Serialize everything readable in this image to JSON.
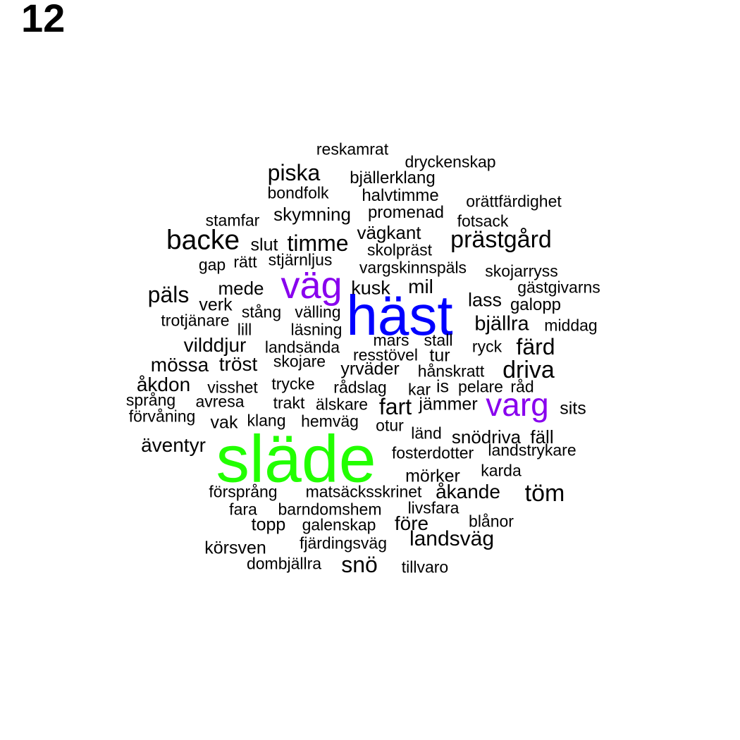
{
  "panel_label": "12",
  "colors": {
    "default": "#000000",
    "green": "#22ff00",
    "blue": "#0000ff",
    "purple": "#8800ee"
  },
  "words": [
    {
      "text": "släde",
      "weight": 9.5,
      "color": "#22ff00"
    },
    {
      "text": "häst",
      "weight": 8.0,
      "color": "#0000ff"
    },
    {
      "text": "väg",
      "weight": 5.4,
      "color": "#8800ee"
    },
    {
      "text": "varg",
      "weight": 4.6,
      "color": "#8800ee"
    },
    {
      "text": "backe",
      "weight": 3.9,
      "color": "#000000"
    },
    {
      "text": "prästgård",
      "weight": 3.4,
      "color": "#000000"
    },
    {
      "text": "driva",
      "weight": 3.4,
      "color": "#000000"
    },
    {
      "text": "töm",
      "weight": 3.4,
      "color": "#000000"
    },
    {
      "text": "piska",
      "weight": 3.2,
      "color": "#000000"
    },
    {
      "text": "timme",
      "weight": 3.2,
      "color": "#000000"
    },
    {
      "text": "päls",
      "weight": 3.2,
      "color": "#000000"
    },
    {
      "text": "färd",
      "weight": 3.2,
      "color": "#000000"
    },
    {
      "text": "fart",
      "weight": 3.2,
      "color": "#000000"
    },
    {
      "text": "snö",
      "weight": 3.2,
      "color": "#000000"
    },
    {
      "text": "landsväg",
      "weight": 3.0,
      "color": "#000000"
    },
    {
      "text": "bjällra",
      "weight": 2.9,
      "color": "#000000"
    },
    {
      "text": "vilddjur",
      "weight": 2.8,
      "color": "#000000"
    },
    {
      "text": "mössa",
      "weight": 2.8,
      "color": "#000000"
    },
    {
      "text": "tröst",
      "weight": 2.8,
      "color": "#000000"
    },
    {
      "text": "åkdon",
      "weight": 2.8,
      "color": "#000000"
    },
    {
      "text": "äventyr",
      "weight": 2.8,
      "color": "#000000"
    },
    {
      "text": "åkande",
      "weight": 2.8,
      "color": "#000000"
    },
    {
      "text": "före",
      "weight": 2.8,
      "color": "#000000"
    },
    {
      "text": "mil",
      "weight": 2.8,
      "color": "#000000"
    },
    {
      "text": "kusk",
      "weight": 2.7,
      "color": "#000000"
    },
    {
      "text": "lass",
      "weight": 2.7,
      "color": "#000000"
    },
    {
      "text": "vägkant",
      "weight": 2.6,
      "color": "#000000"
    },
    {
      "text": "skymning",
      "weight": 2.6,
      "color": "#000000"
    },
    {
      "text": "mede",
      "weight": 2.6,
      "color": "#000000"
    },
    {
      "text": "snödriva",
      "weight": 2.6,
      "color": "#000000"
    },
    {
      "text": "fäll",
      "weight": 2.6,
      "color": "#000000"
    },
    {
      "text": "slut",
      "weight": 2.5,
      "color": "#000000"
    },
    {
      "text": "verk",
      "weight": 2.5,
      "color": "#000000"
    },
    {
      "text": "tur",
      "weight": 2.5,
      "color": "#000000"
    },
    {
      "text": "yrväder",
      "weight": 2.5,
      "color": "#000000"
    },
    {
      "text": "jämmer",
      "weight": 2.5,
      "color": "#000000"
    },
    {
      "text": "sits",
      "weight": 2.5,
      "color": "#000000"
    },
    {
      "text": "mörker",
      "weight": 2.5,
      "color": "#000000"
    },
    {
      "text": "topp",
      "weight": 2.5,
      "color": "#000000"
    },
    {
      "text": "körsven",
      "weight": 2.5,
      "color": "#000000"
    },
    {
      "text": "vak",
      "weight": 2.5,
      "color": "#000000"
    },
    {
      "text": "is",
      "weight": 2.5,
      "color": "#000000"
    },
    {
      "text": "galopp",
      "weight": 2.4,
      "color": "#000000"
    },
    {
      "text": "halvtimme",
      "weight": 2.4,
      "color": "#000000"
    },
    {
      "text": "promenad",
      "weight": 2.4,
      "color": "#000000"
    },
    {
      "text": "bjällerklang",
      "weight": 2.4,
      "color": "#000000"
    },
    {
      "text": "reskamrat",
      "weight": 2.3,
      "color": "#000000"
    },
    {
      "text": "dryckenskap",
      "weight": 2.3,
      "color": "#000000"
    },
    {
      "text": "bondfolk",
      "weight": 2.3,
      "color": "#000000"
    },
    {
      "text": "orättfärdighet",
      "weight": 2.3,
      "color": "#000000"
    },
    {
      "text": "stamfar",
      "weight": 2.3,
      "color": "#000000"
    },
    {
      "text": "fotsack",
      "weight": 2.3,
      "color": "#000000"
    },
    {
      "text": "skolpräst",
      "weight": 2.3,
      "color": "#000000"
    },
    {
      "text": "stjärnljus",
      "weight": 2.3,
      "color": "#000000"
    },
    {
      "text": "gap",
      "weight": 2.3,
      "color": "#000000"
    },
    {
      "text": "rätt",
      "weight": 2.3,
      "color": "#000000"
    },
    {
      "text": "vargskinnspäls",
      "weight": 2.3,
      "color": "#000000"
    },
    {
      "text": "skojarryss",
      "weight": 2.3,
      "color": "#000000"
    },
    {
      "text": "gästgivarns",
      "weight": 2.3,
      "color": "#000000"
    },
    {
      "text": "stång",
      "weight": 2.3,
      "color": "#000000"
    },
    {
      "text": "välling",
      "weight": 2.3,
      "color": "#000000"
    },
    {
      "text": "trotjänare",
      "weight": 2.3,
      "color": "#000000"
    },
    {
      "text": "lill",
      "weight": 2.3,
      "color": "#000000"
    },
    {
      "text": "läsning",
      "weight": 2.3,
      "color": "#000000"
    },
    {
      "text": "middag",
      "weight": 2.3,
      "color": "#000000"
    },
    {
      "text": "mars",
      "weight": 2.3,
      "color": "#000000"
    },
    {
      "text": "stall",
      "weight": 2.3,
      "color": "#000000"
    },
    {
      "text": "landsända",
      "weight": 2.3,
      "color": "#000000"
    },
    {
      "text": "ryck",
      "weight": 2.3,
      "color": "#000000"
    },
    {
      "text": "resstövel",
      "weight": 2.3,
      "color": "#000000"
    },
    {
      "text": "skojare",
      "weight": 2.3,
      "color": "#000000"
    },
    {
      "text": "hånskratt",
      "weight": 2.3,
      "color": "#000000"
    },
    {
      "text": "visshet",
      "weight": 2.3,
      "color": "#000000"
    },
    {
      "text": "trycke",
      "weight": 2.3,
      "color": "#000000"
    },
    {
      "text": "rådslag",
      "weight": 2.3,
      "color": "#000000"
    },
    {
      "text": "kar",
      "weight": 2.3,
      "color": "#000000"
    },
    {
      "text": "pelare",
      "weight": 2.3,
      "color": "#000000"
    },
    {
      "text": "råd",
      "weight": 2.3,
      "color": "#000000"
    },
    {
      "text": "språng",
      "weight": 2.3,
      "color": "#000000"
    },
    {
      "text": "avresa",
      "weight": 2.3,
      "color": "#000000"
    },
    {
      "text": "trakt",
      "weight": 2.3,
      "color": "#000000"
    },
    {
      "text": "älskare",
      "weight": 2.3,
      "color": "#000000"
    },
    {
      "text": "förvåning",
      "weight": 2.3,
      "color": "#000000"
    },
    {
      "text": "klang",
      "weight": 2.3,
      "color": "#000000"
    },
    {
      "text": "hemväg",
      "weight": 2.3,
      "color": "#000000"
    },
    {
      "text": "otur",
      "weight": 2.3,
      "color": "#000000"
    },
    {
      "text": "länd",
      "weight": 2.3,
      "color": "#000000"
    },
    {
      "text": "fosterdotter",
      "weight": 2.3,
      "color": "#000000"
    },
    {
      "text": "landstrykare",
      "weight": 2.3,
      "color": "#000000"
    },
    {
      "text": "karda",
      "weight": 2.3,
      "color": "#000000"
    },
    {
      "text": "försprång",
      "weight": 2.3,
      "color": "#000000"
    },
    {
      "text": "matsäcksskrinet",
      "weight": 2.3,
      "color": "#000000"
    },
    {
      "text": "fara",
      "weight": 2.3,
      "color": "#000000"
    },
    {
      "text": "barndomshem",
      "weight": 2.3,
      "color": "#000000"
    },
    {
      "text": "livsfara",
      "weight": 2.3,
      "color": "#000000"
    },
    {
      "text": "galenskap",
      "weight": 2.3,
      "color": "#000000"
    },
    {
      "text": "blånor",
      "weight": 2.3,
      "color": "#000000"
    },
    {
      "text": "fjärdingsväg",
      "weight": 2.3,
      "color": "#000000"
    },
    {
      "text": "dombjällra",
      "weight": 2.3,
      "color": "#000000"
    },
    {
      "text": "tillvaro",
      "weight": 2.3,
      "color": "#000000"
    }
  ]
}
